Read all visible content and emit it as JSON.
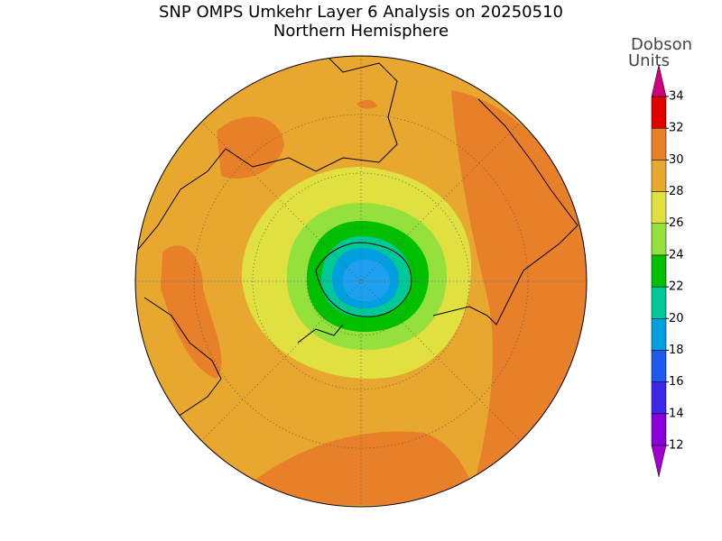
{
  "map": {
    "title": "SNP OMPS Umkehr Layer 6 Analysis on 20250510",
    "subtitle": "Northern Hemisphere"
  },
  "colorbar": {
    "label": [
      "Dobson",
      "Units"
    ],
    "ticks": [
      12,
      14,
      16,
      18,
      20,
      22,
      24,
      26,
      28,
      30,
      32,
      34
    ],
    "colors": [
      "#8a00dc",
      "#3c28e8",
      "#1e5af0",
      "#00a0e0",
      "#00c896",
      "#00c000",
      "#94e03c",
      "#e0e040",
      "#e8a830",
      "#e8802a",
      "#e00000"
    ],
    "over_color": "#d0007a",
    "under_color": "#a000d0"
  }
}
